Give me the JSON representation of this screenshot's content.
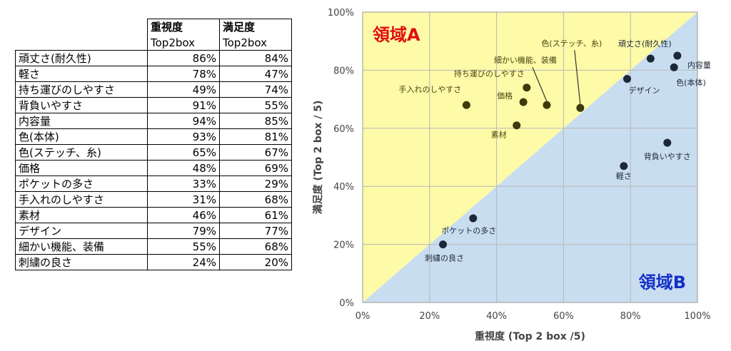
{
  "table": {
    "header": {
      "col1_line1": "重視度",
      "col1_line2": "Top2box",
      "col2_line1": "満足度",
      "col2_line2": "Top2box"
    },
    "rows": [
      {
        "name": "頑丈さ(耐久性)",
        "importance": "86%",
        "satisfaction": "84%"
      },
      {
        "name": "軽さ",
        "importance": "78%",
        "satisfaction": "47%"
      },
      {
        "name": "持ち運びのしやすさ",
        "importance": "49%",
        "satisfaction": "74%"
      },
      {
        "name": "背負いやすさ",
        "importance": "91%",
        "satisfaction": "55%"
      },
      {
        "name": "内容量",
        "importance": "94%",
        "satisfaction": "85%"
      },
      {
        "name": "色(本体)",
        "importance": "93%",
        "satisfaction": "81%"
      },
      {
        "name": "色(ステッチ、糸)",
        "importance": "65%",
        "satisfaction": "67%"
      },
      {
        "name": "価格",
        "importance": "48%",
        "satisfaction": "69%"
      },
      {
        "name": "ポケットの多さ",
        "importance": "33%",
        "satisfaction": "29%"
      },
      {
        "name": "手入れのしやすさ",
        "importance": "31%",
        "satisfaction": "68%"
      },
      {
        "name": "素材",
        "importance": "46%",
        "satisfaction": "61%"
      },
      {
        "name": "デザイン",
        "importance": "79%",
        "satisfaction": "77%"
      },
      {
        "name": "細かい機能、装備",
        "importance": "55%",
        "satisfaction": "68%"
      },
      {
        "name": "刺繍の良さ",
        "importance": "24%",
        "satisfaction": "20%"
      }
    ]
  },
  "chart_data": {
    "type": "scatter",
    "xlabel": "重視度 (Top 2 box /5)",
    "ylabel": "満足度 (Top 2 box / 5)",
    "xlim": [
      0,
      100
    ],
    "ylim": [
      0,
      100
    ],
    "x_ticks": [
      "0%",
      "20%",
      "40%",
      "60%",
      "80%",
      "100%"
    ],
    "y_ticks": [
      "0%",
      "20%",
      "40%",
      "60%",
      "80%",
      "100%"
    ],
    "grid": true,
    "region_a_label": "領域A",
    "region_b_label": "領域B",
    "colors": {
      "region_a_fill": "#fdfaa8",
      "region_b_fill": "#c9ddf0",
      "region_a_point": "#3d3a0c",
      "region_b_point": "#1c2838",
      "region_a_text": "#e01010",
      "region_b_text": "#1530c8",
      "region_a_label_text": "#4a4410",
      "region_b_label_text": "#1c2838"
    },
    "points": [
      {
        "label": "頑丈さ(耐久性)",
        "x": 86,
        "y": 84,
        "region": "B"
      },
      {
        "label": "軽さ",
        "x": 78,
        "y": 47,
        "region": "B"
      },
      {
        "label": "持ち運びのしやすさ",
        "x": 49,
        "y": 74,
        "region": "A"
      },
      {
        "label": "背負いやすさ",
        "x": 91,
        "y": 55,
        "region": "B"
      },
      {
        "label": "内容量",
        "x": 94,
        "y": 85,
        "region": "B"
      },
      {
        "label": "色(本体)",
        "x": 93,
        "y": 81,
        "region": "B"
      },
      {
        "label": "色(ステッチ、糸)",
        "x": 65,
        "y": 67,
        "region": "A"
      },
      {
        "label": "価格",
        "x": 48,
        "y": 69,
        "region": "A"
      },
      {
        "label": "ポケットの多さ",
        "x": 33,
        "y": 29,
        "region": "B"
      },
      {
        "label": "手入れのしやすさ",
        "x": 31,
        "y": 68,
        "region": "A"
      },
      {
        "label": "素材",
        "x": 46,
        "y": 61,
        "region": "A"
      },
      {
        "label": "デザイン",
        "x": 79,
        "y": 77,
        "region": "B"
      },
      {
        "label": "細かい機能、装備",
        "x": 55,
        "y": 68,
        "region": "A"
      },
      {
        "label": "刺繍の良さ",
        "x": 24,
        "y": 20,
        "region": "B"
      }
    ]
  }
}
